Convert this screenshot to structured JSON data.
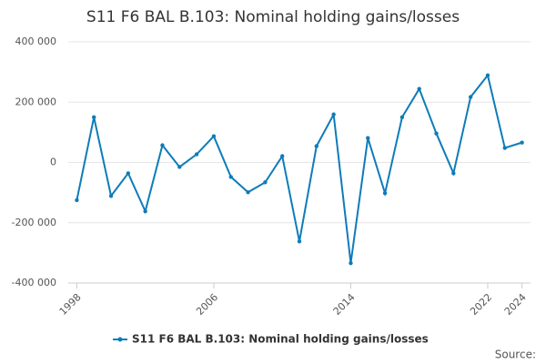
{
  "chart_data": {
    "type": "line",
    "title": "S11 F6 BAL B.103: Nominal holding gains/losses",
    "x": [
      1998,
      1999,
      2000,
      2001,
      2002,
      2003,
      2004,
      2005,
      2006,
      2007,
      2008,
      2009,
      2010,
      2011,
      2012,
      2013,
      2014,
      2015,
      2016,
      2017,
      2018,
      2019,
      2020,
      2021,
      2022,
      2023,
      2024
    ],
    "series": [
      {
        "name": "S11 F6 BAL B.103: Nominal holding gains/losses",
        "color": "#0e7cb8",
        "values": [
          -125000,
          150000,
          -111000,
          -36000,
          -162000,
          57000,
          -15000,
          27000,
          87000,
          -48000,
          -99000,
          -66000,
          21000,
          -262000,
          54000,
          159000,
          -334000,
          81000,
          -102000,
          150000,
          244000,
          96000,
          -36000,
          217000,
          289000,
          48000,
          66000
        ]
      }
    ],
    "xlim": [
      1997.5,
      2024.5
    ],
    "xticks": [
      1998,
      2006,
      2014,
      2022,
      2024
    ],
    "ylim": [
      -400000,
      400000
    ],
    "yticks": [
      {
        "value": -400000,
        "label": "-400 000"
      },
      {
        "value": -200000,
        "label": "-200 000"
      },
      {
        "value": 0,
        "label": "0"
      },
      {
        "value": 200000,
        "label": "200 000"
      },
      {
        "value": 400000,
        "label": "400 000"
      }
    ],
    "grid": true,
    "source": "Source:"
  }
}
